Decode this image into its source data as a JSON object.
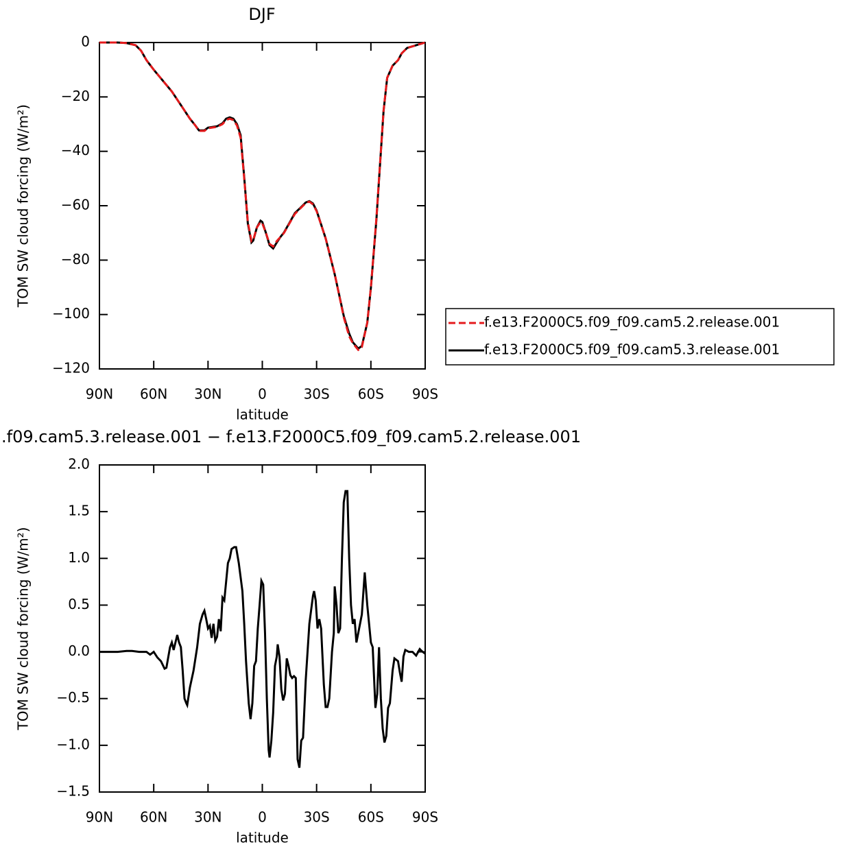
{
  "chart_data": [
    {
      "type": "line",
      "title": "DJF",
      "xlabel": "latitude",
      "ylabel": "TOM SW cloud forcing (W/m²)",
      "x": [
        90,
        80,
        75,
        70,
        67,
        64,
        60,
        55,
        50,
        45,
        40,
        37,
        35,
        32,
        30,
        25,
        22,
        20,
        18,
        16,
        14,
        12,
        10,
        8,
        6,
        5,
        3,
        1,
        0,
        -2,
        -4,
        -6,
        -8,
        -10,
        -12,
        -15,
        -18,
        -21,
        -24,
        -26,
        -28,
        -30,
        -35,
        -40,
        -45,
        -48,
        -50,
        -53,
        -55,
        -58,
        -60,
        -63,
        -65,
        -67,
        -69,
        -72,
        -75,
        -77,
        -80,
        -85,
        -90
      ],
      "series": [
        {
          "name": "f.e13.F2000C5.f09_f09.cam5.2.release.001",
          "color": "#e41a1c",
          "dash": true,
          "values": [
            0,
            0,
            -0.2,
            -1,
            -3,
            -6.5,
            -10,
            -14,
            -18,
            -23,
            -28,
            -30.5,
            -32.5,
            -32.5,
            -31.5,
            -31,
            -30,
            -28.5,
            -28,
            -28.5,
            -30.5,
            -35,
            -50,
            -66,
            -73,
            -72.5,
            -68,
            -66,
            -66.5,
            -70,
            -74,
            -75,
            -73,
            -71.5,
            -70,
            -66.5,
            -63,
            -61,
            -59,
            -58.5,
            -59.5,
            -62,
            -72,
            -85,
            -101,
            -108,
            -110.5,
            -113,
            -112,
            -103,
            -90,
            -65,
            -45,
            -25,
            -13,
            -8.5,
            -6.5,
            -4,
            -2,
            -1,
            0
          ]
        },
        {
          "name": "f.e13.F2000C5.f09_f09.cam5.3.release.001",
          "color": "#000000",
          "dash": false,
          "values": [
            0,
            0,
            -0.2,
            -1,
            -3,
            -6.5,
            -10,
            -14,
            -18,
            -23,
            -28,
            -30.5,
            -32.3,
            -32.3,
            -31.3,
            -30.8,
            -29.7,
            -28,
            -27.5,
            -28,
            -30,
            -34,
            -49.5,
            -66.5,
            -73.5,
            -72.8,
            -68,
            -65.5,
            -66,
            -70,
            -74.5,
            -75.7,
            -73.5,
            -71.5,
            -69.8,
            -66.3,
            -62.7,
            -60.8,
            -58.8,
            -58.3,
            -59.2,
            -61.8,
            -72,
            -85.2,
            -100.5,
            -107,
            -110.2,
            -112.5,
            -111.6,
            -103,
            -90.2,
            -65.5,
            -45.3,
            -25.2,
            -13,
            -8.5,
            -6.5,
            -4,
            -2,
            -1,
            0
          ]
        }
      ],
      "xlim": [
        90,
        -90
      ],
      "xticks": [
        {
          "value": 90,
          "label": "90N"
        },
        {
          "value": 60,
          "label": "60N"
        },
        {
          "value": 30,
          "label": "30N"
        },
        0,
        {
          "value": -30,
          "label": "30S"
        },
        {
          "value": -60,
          "label": "60S"
        },
        {
          "value": -90,
          "label": "90S"
        }
      ],
      "ylim": [
        -120,
        0
      ],
      "yticks": [
        0,
        {
          "value": -20,
          "label": "−20"
        },
        {
          "value": -40,
          "label": "−40"
        },
        {
          "value": -60,
          "label": "−60"
        },
        {
          "value": -80,
          "label": "−80"
        },
        {
          "value": -100,
          "label": "−100"
        },
        {
          "value": -120,
          "label": "−120"
        }
      ],
      "legend": "right"
    },
    {
      "type": "line",
      "title": ".f09.cam5.3.release.001 − f.e13.F2000C5.f09_f09.cam5.2.release.001",
      "xlabel": "latitude",
      "ylabel": "TOM SW cloud forcing (W/m²)",
      "x": [
        90,
        80,
        75,
        72,
        68,
        64,
        62,
        60,
        58,
        56,
        54,
        53,
        51,
        50,
        49,
        48,
        47,
        46,
        45,
        44,
        43,
        42,
        41.5,
        40,
        38,
        36,
        34.5,
        33,
        32,
        31,
        30,
        29,
        28,
        27,
        26,
        25,
        24,
        23,
        22,
        21,
        20,
        19,
        18,
        17,
        15.5,
        14.5,
        13,
        11,
        10,
        9,
        7.5,
        6.5,
        5.5,
        4.5,
        3.5,
        2.5,
        1.5,
        0.5,
        -0.5,
        -1.5,
        -2.5,
        -3.5,
        -4,
        -5,
        -6,
        -7,
        -8,
        -8.5,
        -9.5,
        -10.5,
        -11.5,
        -12.5,
        -13.5,
        -14.5,
        -15.5,
        -16.5,
        -17.5,
        -18.5,
        -19.5,
        -20.5,
        -21.5,
        -22.5,
        -24,
        -26,
        -28,
        -28.6,
        -29.5,
        -30.5,
        -31.5,
        -32.5,
        -34,
        -35,
        -36,
        -37,
        -38.5,
        -39.5,
        -40,
        -41,
        -42,
        -43,
        -44,
        -45,
        -46,
        -47,
        -48,
        -49,
        -50,
        -51,
        -52,
        -53,
        -55,
        -56.6,
        -58,
        -60,
        -61,
        -62.5,
        -63.5,
        -64.5,
        -65.5,
        -66.5,
        -67.5,
        -68.5,
        -69.5,
        -70.5,
        -72,
        -73,
        -75,
        -76,
        -77,
        -78,
        -79,
        -81,
        -83,
        -85,
        -87,
        -88,
        -90
      ],
      "values": [
        0,
        0,
        0.01,
        0.01,
        0,
        0,
        -0.03,
        0,
        -0.06,
        -0.1,
        -0.18,
        -0.17,
        0.05,
        0.1,
        0.02,
        0.1,
        0.18,
        0.1,
        0.05,
        -0.2,
        -0.5,
        -0.55,
        -0.57,
        -0.38,
        -0.2,
        0.05,
        0.3,
        0.4,
        0.44,
        0.35,
        0.25,
        0.28,
        0.15,
        0.3,
        0.12,
        0.16,
        0.35,
        0.22,
        0.58,
        0.55,
        0.75,
        0.95,
        1.0,
        1.1,
        1.12,
        1.12,
        0.95,
        0.65,
        0.3,
        -0.1,
        -0.55,
        -0.72,
        -0.55,
        -0.15,
        -0.1,
        0.25,
        0.5,
        0.76,
        0.72,
        0.2,
        -0.5,
        -1.05,
        -1.13,
        -0.95,
        -0.65,
        -0.15,
        -0.05,
        0.08,
        -0.05,
        -0.4,
        -0.52,
        -0.45,
        -0.07,
        -0.15,
        -0.25,
        -0.28,
        -0.26,
        -0.28,
        -1.15,
        -1.24,
        -0.95,
        -0.92,
        -0.3,
        0.3,
        0.6,
        0.65,
        0.55,
        0.25,
        0.35,
        0.25,
        -0.35,
        -0.59,
        -0.59,
        -0.5,
        0.0,
        0.2,
        0.7,
        0.5,
        0.2,
        0.25,
        1.0,
        1.6,
        1.72,
        1.72,
        1.0,
        0.5,
        0.3,
        0.35,
        0.1,
        0.2,
        0.4,
        0.85,
        0.5,
        0.1,
        0.05,
        -0.6,
        -0.45,
        0.05,
        -0.5,
        -0.82,
        -0.97,
        -0.9,
        -0.6,
        -0.55,
        -0.2,
        -0.07,
        -0.1,
        -0.22,
        -0.32,
        -0.05,
        0.02,
        0.0,
        0.0,
        -0.04,
        0.03,
        0.01,
        -0.02
      ],
      "color": "#000000",
      "xlim": [
        90,
        -90
      ],
      "xticks": [
        {
          "value": 90,
          "label": "90N"
        },
        {
          "value": 60,
          "label": "60N"
        },
        {
          "value": 30,
          "label": "30N"
        },
        0,
        {
          "value": -30,
          "label": "30S"
        },
        {
          "value": -60,
          "label": "60S"
        },
        {
          "value": -90,
          "label": "90S"
        }
      ],
      "ylim": [
        -1.5,
        2
      ],
      "yticks": [
        {
          "value": -1.5,
          "label": "−1.5"
        },
        {
          "value": -1,
          "label": "−1.0"
        },
        {
          "value": -0.5,
          "label": "−0.5"
        },
        {
          "value": 0,
          "label": "0.0"
        },
        0.5,
        {
          "value": 1,
          "label": "1.0"
        },
        1.5,
        {
          "value": 2,
          "label": "2.0"
        }
      ]
    }
  ]
}
